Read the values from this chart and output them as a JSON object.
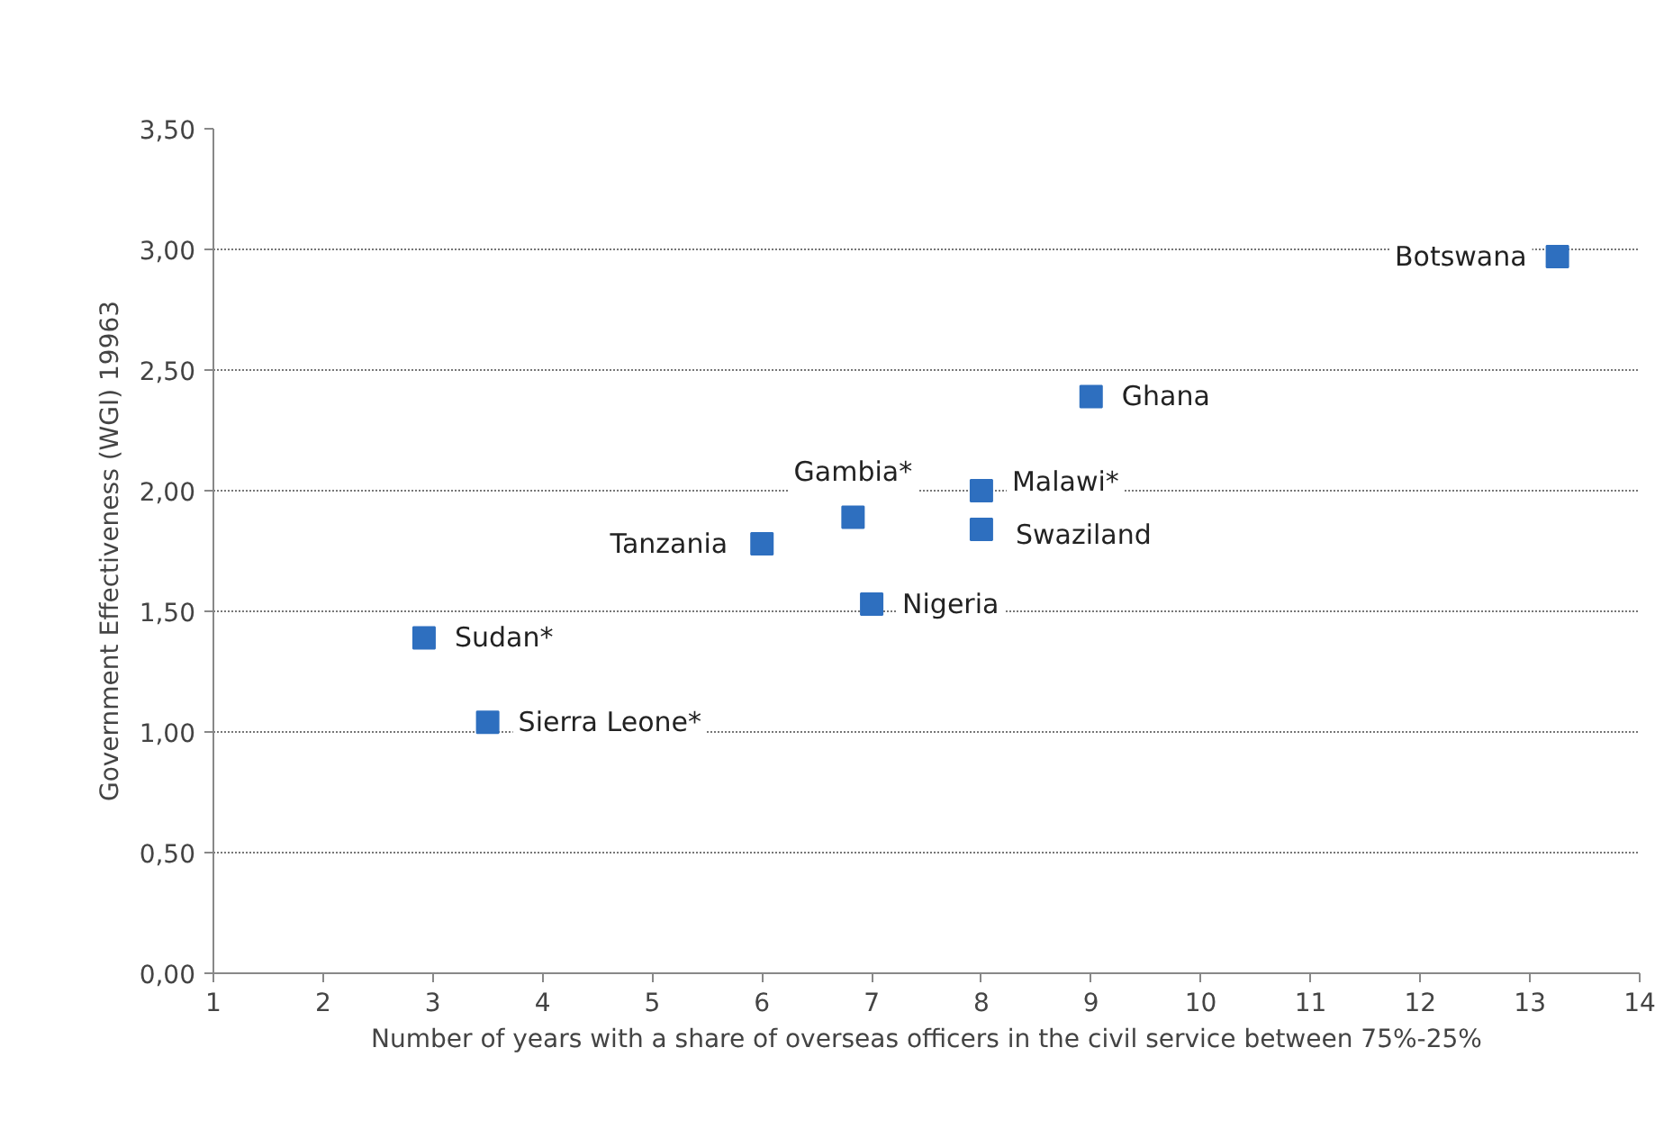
{
  "chart_data": {
    "type": "scatter",
    "xlabel": "Number of years with a share of overseas officers in the civil service between 75%-25%",
    "ylabel": "Government Effectiveness (WGI) 19963",
    "x": [
      13.25,
      9,
      8,
      8,
      6.83,
      6,
      7,
      2.92,
      3.5
    ],
    "values": [
      2.97,
      2.39,
      2.0,
      1.84,
      1.89,
      1.78,
      1.53,
      1.39,
      1.04
    ],
    "color": "#2e6fbf",
    "marker": "square",
    "grid": "y",
    "xlim": [
      1,
      14
    ],
    "xticks": [
      1,
      2,
      3,
      4,
      5,
      6,
      7,
      8,
      9,
      10,
      11,
      12,
      13,
      14
    ],
    "ylim": [
      0,
      3.5
    ],
    "yticks": [
      {
        "value": 0,
        "label": "0,00"
      },
      {
        "value": 0.5,
        "label": "0,50"
      },
      {
        "value": 1,
        "label": "1,00"
      },
      {
        "value": 1.5,
        "label": "1,50"
      },
      {
        "value": 2,
        "label": "2,00"
      },
      {
        "value": 2.5,
        "label": "2,50"
      },
      {
        "value": 3,
        "label": "3,00"
      },
      {
        "value": 3.5,
        "label": "3,50"
      }
    ],
    "annotations": [
      {
        "text": "Botswana",
        "x": 13.25,
        "y": 2.97
      },
      {
        "text": "Ghana",
        "x": 9,
        "y": 2.39
      },
      {
        "text": "Malawi*",
        "x": 8,
        "y": 2.0
      },
      {
        "text": "Swaziland",
        "x": 8,
        "y": 1.84
      },
      {
        "text": "Gambia*",
        "x": 6.83,
        "y": 1.89
      },
      {
        "text": "Tanzania",
        "x": 6,
        "y": 1.78
      },
      {
        "text": "Nigeria",
        "x": 7,
        "y": 1.53
      },
      {
        "text": "Sudan*",
        "x": 2.92,
        "y": 1.39
      },
      {
        "text": "Sierra Leone*",
        "x": 3.5,
        "y": 1.04
      }
    ]
  }
}
